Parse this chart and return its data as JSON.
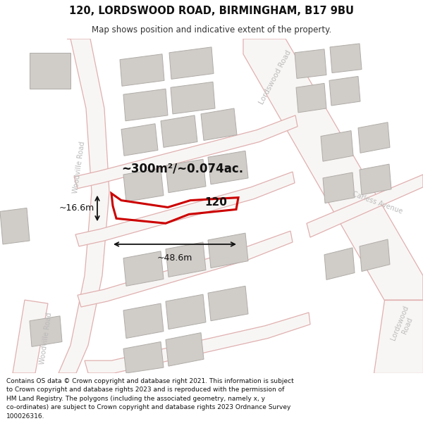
{
  "title_line1": "120, LORDSWOOD ROAD, BIRMINGHAM, B17 9BU",
  "title_line2": "Map shows position and indicative extent of the property.",
  "footer_text": "Contains OS data © Crown copyright and database right 2021. This information is subject to Crown copyright and database rights 2023 and is reproduced with the permission of HM Land Registry. The polygons (including the associated geometry, namely x, y co-ordinates) are subject to Crown copyright and database rights 2023 Ordnance Survey 100026316.",
  "area_label": "~300m²/~0.074ac.",
  "width_label": "~48.6m",
  "height_label": "~16.6m",
  "property_number": "120",
  "map_bg": "#f5f3f1",
  "road_fill": "#f8f6f4",
  "road_stroke": "#e0b0b0",
  "building_fill": "#d0ccc8",
  "building_stroke": "#b0aca8",
  "property_stroke": "#cc0000",
  "dim_color": "#111111",
  "road_label_color": "#bbbbbb",
  "title_fontsize": 10.5,
  "subtitle_fontsize": 8.5,
  "footer_fontsize": 6.5
}
